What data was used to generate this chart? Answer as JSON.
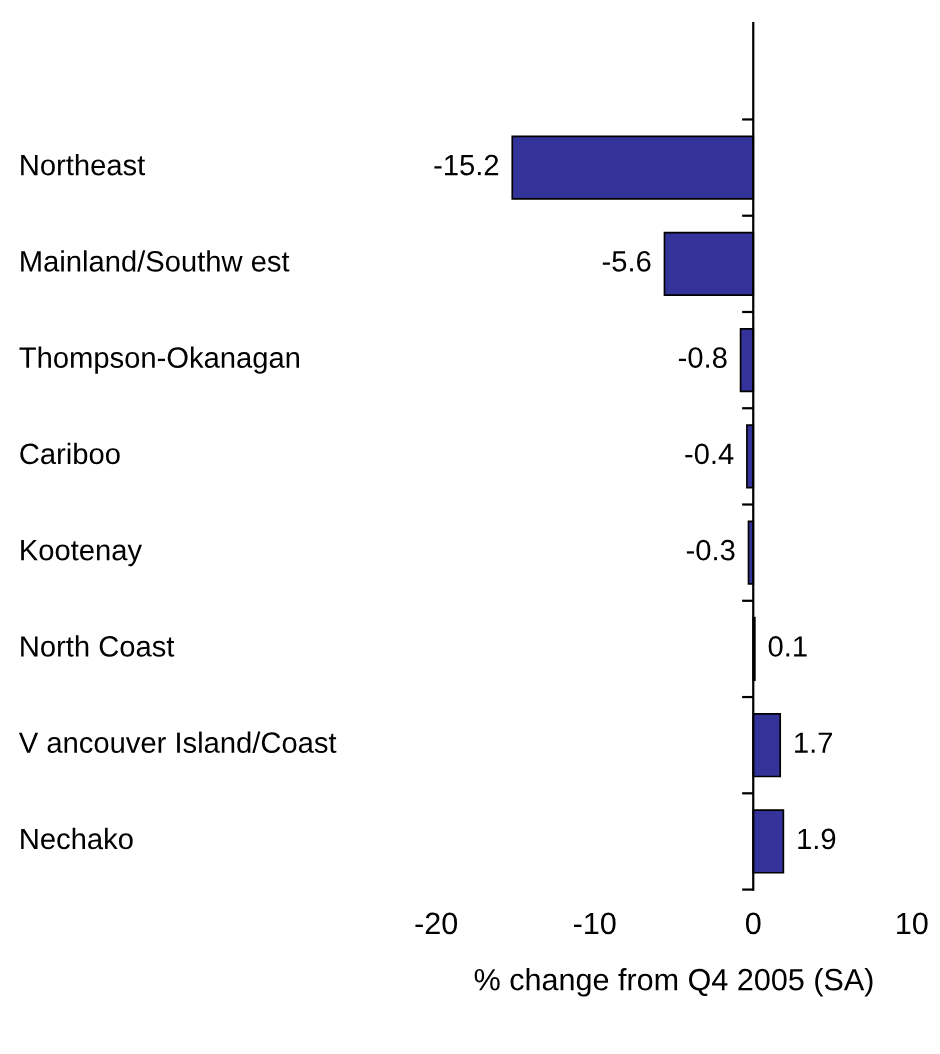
{
  "chart_data": {
    "type": "bar",
    "orientation": "horizontal",
    "xlabel": "% change from Q4 2005 (SA)",
    "categories": [
      "Northeast",
      "Mainland/Southw est",
      "Thompson-Okanagan",
      "Cariboo",
      "Kootenay",
      "North Coast",
      "V ancouver Island/Coast",
      "Nechako"
    ],
    "values": [
      -15.2,
      -5.6,
      -0.8,
      -0.4,
      -0.3,
      0.1,
      1.7,
      1.9
    ],
    "color": "#333399",
    "xlim": [
      -20,
      10
    ],
    "xticks": [
      -20,
      -10,
      0,
      10
    ],
    "data_labels": true
  }
}
